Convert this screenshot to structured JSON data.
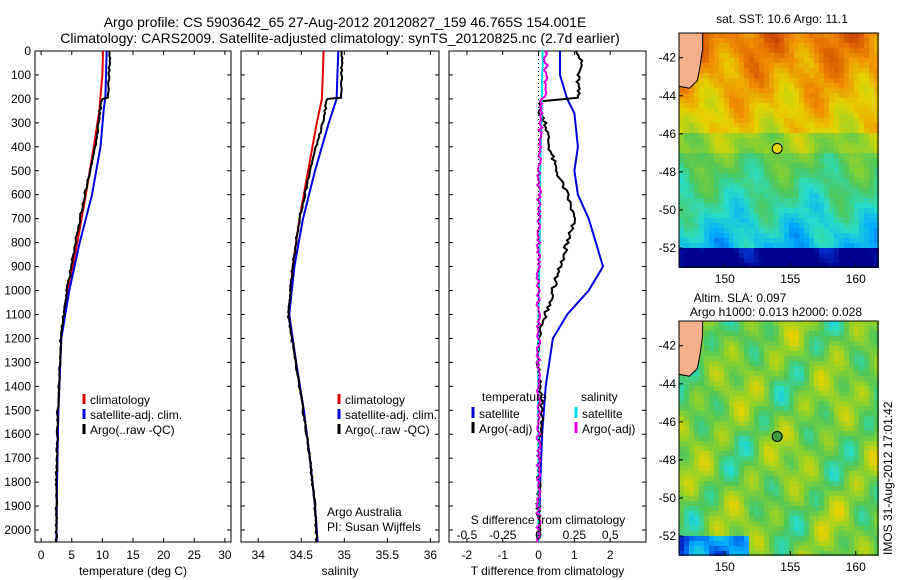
{
  "title_line1": "Argo profile: CS 5903642_65 27-Aug-2012 20120827_159 46.765S 154.001E",
  "title_line2": "Climatology: CARS2009. Satellite-adjusted climatology: synTS_20120825.nc (2.7d earlier)",
  "colors": {
    "climatology": "#e00000",
    "satellite": "#0000dd",
    "argo": "#000000",
    "sat_salinity": "#00e0e0",
    "argo_salinity": "#e000e0",
    "land": "#f4b08c"
  },
  "depth_ticks": [
    0,
    100,
    200,
    300,
    400,
    500,
    600,
    700,
    800,
    900,
    1000,
    1100,
    1200,
    1300,
    1400,
    1500,
    1600,
    1700,
    1800,
    1900,
    2000
  ],
  "chart_data": [
    {
      "type": "line",
      "id": "temperature",
      "xlabel": "temperature (deg C)",
      "xlim": [
        -1,
        31
      ],
      "xticks": [
        0,
        5,
        10,
        15,
        20,
        25,
        30
      ],
      "ylim": [
        2050,
        0
      ],
      "legend": [
        "climatology",
        "satellite-adj. clim.",
        "Argo(..raw -QC)"
      ],
      "series": [
        {
          "name": "climatology",
          "color_key": "climatology",
          "depth": [
            0,
            100,
            190,
            250,
            400,
            600,
            800,
            1000,
            1200,
            1500,
            1800,
            2050
          ],
          "values": [
            10.1,
            10.0,
            9.7,
            9.5,
            8.6,
            7.3,
            5.9,
            4.4,
            3.3,
            2.8,
            2.6,
            2.5
          ]
        },
        {
          "name": "satellite-adj. clim.",
          "color_key": "satellite",
          "depth": [
            0,
            100,
            190,
            250,
            400,
            600,
            800,
            1000,
            1200,
            1500,
            1800,
            2050
          ],
          "values": [
            10.7,
            10.6,
            10.5,
            10.2,
            9.7,
            8.3,
            6.3,
            4.6,
            3.3,
            2.8,
            2.6,
            2.5
          ]
        },
        {
          "name": "Argo(..raw -QC)",
          "color_key": "argo",
          "depth": [
            0,
            100,
            195,
            200,
            250,
            400,
            600,
            800,
            1000,
            1200,
            1500,
            1800,
            2050
          ],
          "values": [
            11.2,
            11.1,
            11.0,
            10.0,
            9.6,
            8.9,
            7.1,
            5.6,
            4.2,
            3.2,
            2.7,
            2.5,
            2.5
          ]
        }
      ]
    },
    {
      "type": "line",
      "id": "salinity",
      "xlabel": "salinity",
      "xlim": [
        33.8,
        36.1
      ],
      "xticks": [
        34,
        34.5,
        35,
        35.5,
        36
      ],
      "ylim": [
        2050,
        0
      ],
      "legend": [
        "climatology",
        "satellite-adj. clim.",
        "Argo(..raw -QC)"
      ],
      "annotation": [
        "Argo Australia",
        "PI: Susan Wijffels"
      ],
      "series": [
        {
          "name": "climatology",
          "color_key": "climatology",
          "depth": [
            0,
            100,
            200,
            300,
            500,
            700,
            900,
            1100,
            1300,
            1500,
            1700,
            1900,
            2050
          ],
          "values": [
            34.76,
            34.75,
            34.74,
            34.68,
            34.58,
            34.48,
            34.4,
            34.36,
            34.44,
            34.53,
            34.6,
            34.66,
            34.69
          ]
        },
        {
          "name": "satellite-adj. clim.",
          "color_key": "satellite",
          "depth": [
            0,
            100,
            200,
            300,
            500,
            700,
            900,
            1100,
            1300,
            1500,
            1700,
            1900,
            2050
          ],
          "values": [
            34.93,
            34.92,
            34.91,
            34.82,
            34.66,
            34.52,
            34.42,
            34.36,
            34.44,
            34.53,
            34.6,
            34.66,
            34.69
          ]
        },
        {
          "name": "Argo(..raw -QC)",
          "color_key": "argo",
          "depth": [
            0,
            100,
            195,
            200,
            300,
            500,
            700,
            900,
            1100,
            1300,
            1500,
            1700,
            1900,
            2050
          ],
          "values": [
            34.97,
            34.97,
            34.97,
            34.8,
            34.75,
            34.6,
            34.48,
            34.4,
            34.35,
            34.43,
            34.52,
            34.6,
            34.66,
            34.68
          ]
        }
      ]
    },
    {
      "type": "line",
      "id": "difference",
      "xlabel": "T difference from climatology",
      "xlabel_top": "S difference from climatology",
      "xlim": [
        -2.5,
        3.0
      ],
      "xticks": [
        -2,
        -1,
        0,
        1,
        2
      ],
      "top_ticks": [
        -0.5,
        -0.25,
        0,
        0.25,
        0.5
      ],
      "top_tick_labels": [
        "-0.5",
        "-0.25",
        "0",
        "0.25",
        "0.5"
      ],
      "ylim": [
        2050,
        0
      ],
      "legend_temperature": [
        "temperature",
        "satellite",
        "Argo(-adj)"
      ],
      "legend_salinity": [
        "salinity",
        "satellite",
        "Argo(-adj)"
      ],
      "series": [
        {
          "name": "satellite",
          "group": "temperature",
          "color_key": "satellite",
          "depth": [
            0,
            100,
            200,
            260,
            400,
            500,
            600,
            700,
            800,
            900,
            1000,
            1100,
            1200,
            1400,
            1600,
            1800,
            2050
          ],
          "values": [
            0.6,
            0.6,
            0.8,
            1.0,
            1.1,
            1.0,
            1.1,
            1.4,
            1.6,
            1.8,
            1.4,
            0.8,
            0.4,
            0.2,
            0.1,
            0.05,
            0.0
          ]
        },
        {
          "name": "Argo(-adj)",
          "group": "temperature",
          "color_key": "argo",
          "depth": [
            0,
            60,
            100,
            195,
            210,
            250,
            300,
            400,
            500,
            600,
            700,
            800,
            900,
            1000,
            1100,
            1200,
            1300,
            1500,
            1700,
            1900,
            2050
          ],
          "values": [
            1.1,
            1.2,
            1.1,
            1.1,
            0.1,
            0.0,
            0.2,
            0.3,
            0.5,
            0.8,
            1.0,
            0.8,
            0.6,
            0.4,
            0.2,
            0.0,
            0.0,
            0.1,
            0.0,
            0.0,
            0.0
          ]
        },
        {
          "name": "satellite",
          "group": "salinity",
          "color_key": "sat_salinity",
          "depth": [
            0,
            50,
            100,
            200,
            300,
            500,
            700,
            900,
            1100,
            1300,
            1500,
            1700,
            1900,
            2050
          ],
          "values": [
            0.11,
            0.12,
            0.1,
            0.09,
            0.08,
            0.05,
            0.04,
            0.02,
            0.0,
            -0.01,
            -0.01,
            0.0,
            0.0,
            0.0
          ]
        },
        {
          "name": "Argo(-adj)",
          "group": "salinity",
          "color_key": "argo_salinity",
          "depth": [
            0,
            100,
            180,
            200,
            300,
            500,
            700,
            900,
            1100,
            1300,
            1500,
            1700,
            1900,
            2050
          ],
          "values": [
            0.2,
            0.21,
            0.22,
            0.05,
            0.06,
            0.02,
            0.01,
            0.0,
            -0.01,
            0.0,
            0.0,
            0.0,
            0.0,
            -0.01
          ]
        }
      ]
    }
  ],
  "maps": [
    {
      "id": "sst-map",
      "title": "sat. SST: 10.6  Argo: 11.1",
      "xticks": [
        150,
        155,
        160
      ],
      "yticks": [
        -42,
        -44,
        -46,
        -48,
        -50,
        -52
      ],
      "xlim": [
        146.5,
        161.7
      ],
      "ylim": [
        -53,
        -40.7
      ],
      "marker": [
        154.0,
        -46.77
      ],
      "marker_color": "#e8d800"
    },
    {
      "id": "sla-map",
      "title_line1": "Altim. SLA: 0.097",
      "title_line2": "Argo h1000: 0.013 h2000: 0.028",
      "xticks": [
        150,
        155,
        160
      ],
      "yticks": [
        -42,
        -44,
        -46,
        -48,
        -50,
        -52
      ],
      "xlim": [
        146.5,
        161.7
      ],
      "ylim": [
        -53,
        -40.7
      ],
      "marker": [
        154.0,
        -46.77
      ],
      "marker_color": "#3c9a3c"
    }
  ],
  "side_label": "IMOS 31-Aug-2012 17:01:42"
}
